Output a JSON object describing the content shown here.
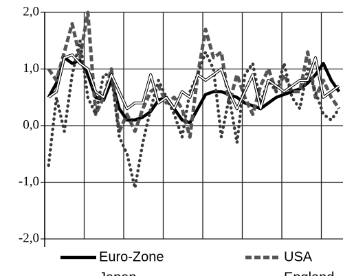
{
  "chart_data": {
    "type": "line",
    "categories": [
      null,
      null,
      null,
      null,
      null,
      null,
      null,
      null,
      null,
      null,
      null,
      null,
      null,
      null,
      null,
      null,
      null,
      null,
      null,
      null,
      null,
      null,
      null,
      null,
      null,
      null,
      null,
      null,
      null,
      null,
      null,
      null,
      null,
      null,
      null,
      null,
      null,
      null
    ],
    "series": [
      {
        "name": "Euro-Zone",
        "color": "#000000",
        "style": "solid-thick",
        "values": [
          0.5,
          0.75,
          1.2,
          1.1,
          1.15,
          0.9,
          0.5,
          0.45,
          0.8,
          0.3,
          0.1,
          0.1,
          0.15,
          0.25,
          0.45,
          0.5,
          0.3,
          0.1,
          0.05,
          0.3,
          0.55,
          0.6,
          0.6,
          0.55,
          0.5,
          0.4,
          0.35,
          0.3,
          0.4,
          0.5,
          0.55,
          0.6,
          0.65,
          0.75,
          0.9,
          1.1,
          0.8,
          0.6
        ]
      },
      {
        "name": "USA",
        "color": "#555555",
        "style": "dashed",
        "values": [
          1.0,
          0.8,
          1.3,
          1.8,
          1.2,
          2.0,
          0.2,
          0.5,
          1.0,
          -0.1,
          0.2,
          -0.1,
          0.3,
          0.6,
          0.7,
          0.4,
          0.5,
          0.3,
          -0.2,
          0.9,
          1.7,
          1.2,
          1.3,
          0.4,
          0.9,
          0.5,
          0.2,
          0.7,
          1.0,
          0.6,
          0.9,
          0.6,
          0.6,
          1.3,
          0.5,
          0.8,
          0.5,
          0.3
        ]
      },
      {
        "name": "Japan",
        "color": "#3a3a3a",
        "style": "dotted",
        "values": [
          -0.7,
          0.5,
          -0.1,
          0.9,
          1.5,
          0.5,
          0.2,
          0.9,
          0.9,
          -0.2,
          -0.5,
          -1.1,
          -0.3,
          0.3,
          0.8,
          0.5,
          0.2,
          -0.2,
          0.6,
          0.9,
          1.3,
          1.0,
          -0.2,
          0.5,
          -0.3,
          0.9,
          1.1,
          0.4,
          0.8,
          0.6,
          1.1,
          0.5,
          0.3,
          1.0,
          0.6,
          0.2,
          0.1,
          0.3
        ]
      },
      {
        "name": "England",
        "color": "#ffffff",
        "style": "outlined",
        "values": [
          0.5,
          0.6,
          1.2,
          1.25,
          1.1,
          1.0,
          0.6,
          0.5,
          0.9,
          0.6,
          0.3,
          0.4,
          0.4,
          0.9,
          0.4,
          0.5,
          0.3,
          0.6,
          0.5,
          0.9,
          0.8,
          0.9,
          1.0,
          0.6,
          0.3,
          0.6,
          0.9,
          0.3,
          0.8,
          0.7,
          0.6,
          0.7,
          0.8,
          0.8,
          1.2,
          0.5,
          0.6,
          0.7
        ]
      }
    ],
    "ylim": [
      -2,
      2
    ],
    "yticks": [
      {
        "value": -2,
        "label": "-2,0"
      },
      {
        "value": -1,
        "label": "-1,0"
      },
      {
        "value": 0,
        "label": "0,0"
      },
      {
        "value": 1,
        "label": "1,0"
      },
      {
        "value": 2,
        "label": "2,0"
      }
    ],
    "grid": true,
    "legend": "bottom"
  }
}
